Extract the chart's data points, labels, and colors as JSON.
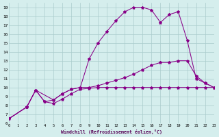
{
  "bg_color": "#d5eeed",
  "line_color": "#880088",
  "grid_color": "#aacccc",
  "xlim": [
    0,
    23
  ],
  "ylim": [
    6,
    19.5
  ],
  "xticks": [
    0,
    1,
    2,
    3,
    4,
    5,
    6,
    7,
    8,
    9,
    10,
    11,
    12,
    13,
    14,
    15,
    16,
    17,
    18,
    19,
    20,
    21,
    22,
    23
  ],
  "yticks": [
    6,
    7,
    8,
    9,
    10,
    11,
    12,
    13,
    14,
    15,
    16,
    17,
    18,
    19
  ],
  "xlabel": "Windchill (Refroidissement éolien,°C)",
  "s1_x": [
    0,
    2,
    3,
    4,
    5,
    6,
    7,
    8,
    9,
    10,
    11,
    12,
    13,
    14,
    15,
    16,
    17,
    18,
    19,
    20,
    21,
    22,
    23
  ],
  "s1_y": [
    6.5,
    7.8,
    9.7,
    8.4,
    8.2,
    8.7,
    9.3,
    9.8,
    9.9,
    10.0,
    10.0,
    10.0,
    10.0,
    10.0,
    10.0,
    10.0,
    10.0,
    10.0,
    10.0,
    10.0,
    10.0,
    10.0,
    10.0
  ],
  "s2_x": [
    0,
    2,
    3,
    4,
    5,
    6,
    7,
    8,
    9,
    10,
    11,
    12,
    13,
    14,
    15,
    16,
    17,
    18,
    19,
    20,
    21,
    22,
    23
  ],
  "s2_y": [
    6.5,
    7.8,
    9.7,
    8.4,
    8.6,
    9.3,
    9.8,
    10.0,
    13.2,
    15.0,
    16.3,
    17.5,
    18.5,
    19.0,
    19.0,
    18.7,
    17.3,
    18.2,
    18.5,
    15.3,
    11.0,
    10.5,
    10.0
  ],
  "s3_x": [
    0,
    2,
    3,
    5,
    6,
    7,
    8,
    9,
    10,
    11,
    12,
    13,
    14,
    15,
    16,
    17,
    18,
    19,
    20,
    21,
    22,
    23
  ],
  "s3_y": [
    6.5,
    7.8,
    9.7,
    8.6,
    9.3,
    9.8,
    10.0,
    10.0,
    10.2,
    10.5,
    10.8,
    11.1,
    11.5,
    12.0,
    12.5,
    12.8,
    12.8,
    13.0,
    13.0,
    11.3,
    10.5,
    10.0
  ]
}
